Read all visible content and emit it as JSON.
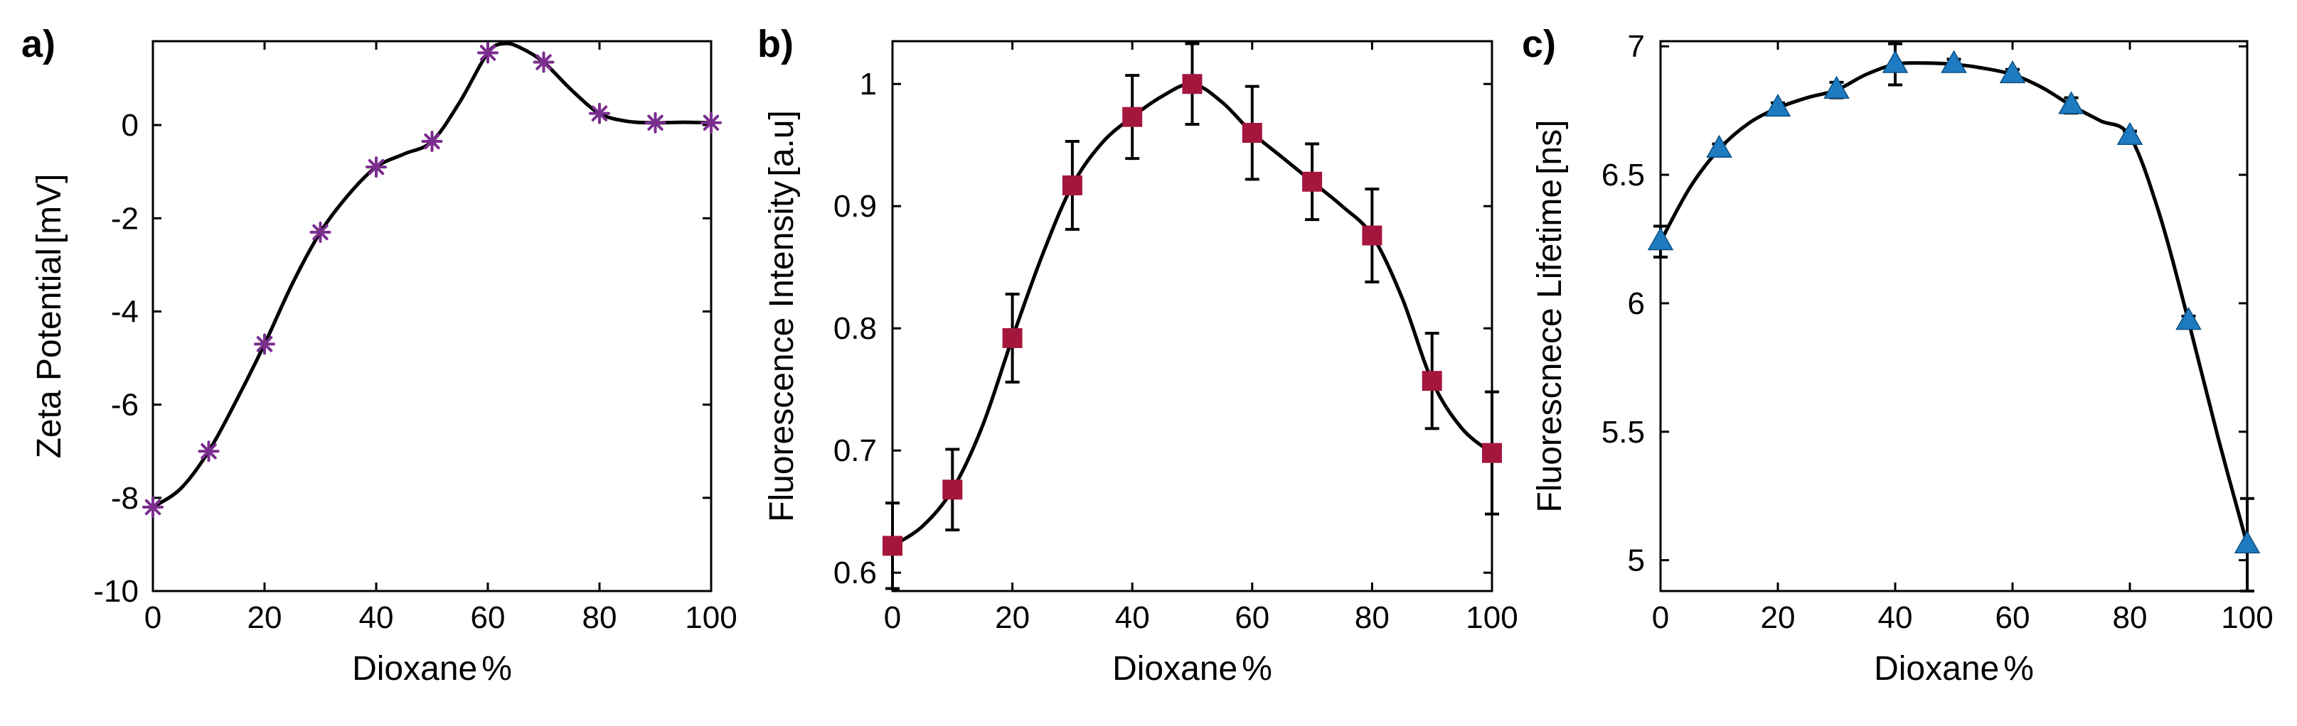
{
  "chart_data": [
    {
      "type": "scatter",
      "panel_label": "a)",
      "xlabel": "Dioxane",
      "xlabel_unit": "%",
      "ylabel": "Zeta Potential",
      "ylabel_unit": "[mV]",
      "xlim": [
        0,
        100
      ],
      "ylim": [
        -10,
        1.8
      ],
      "xticks": [
        0,
        20,
        40,
        60,
        80,
        100
      ],
      "xtick_labels": [
        "0",
        "20",
        "40",
        "60",
        "80",
        "100"
      ],
      "yticks": [
        -10,
        -8,
        -6,
        -4,
        -2,
        0
      ],
      "ytick_labels": [
        "-10",
        "-8",
        "-6",
        "-4",
        "-2",
        "0"
      ],
      "marker": "asterisk",
      "marker_color": "#7b2d8e",
      "series": [
        {
          "name": "Zeta Potential",
          "x": [
            0,
            10,
            20,
            30,
            40,
            50,
            60,
            70,
            80,
            90,
            100
          ],
          "y": [
            -8.2,
            -7.0,
            -4.7,
            -2.3,
            -0.9,
            -0.35,
            1.55,
            1.35,
            0.25,
            0.05,
            0.05
          ]
        }
      ],
      "fit_curve": {
        "x": [
          0,
          5,
          10,
          15,
          20,
          25,
          30,
          35,
          40,
          45,
          50,
          55,
          60,
          63,
          66,
          70,
          75,
          80,
          85,
          90,
          95,
          100
        ],
        "y": [
          -8.2,
          -7.8,
          -7.0,
          -5.9,
          -4.7,
          -3.4,
          -2.3,
          -1.5,
          -0.9,
          -0.62,
          -0.35,
          0.5,
          1.55,
          1.75,
          1.65,
          1.35,
          0.75,
          0.25,
          0.08,
          0.05,
          0.06,
          0.05
        ]
      }
    },
    {
      "type": "scatter",
      "panel_label": "b)",
      "xlabel": "Dioxane",
      "xlabel_unit": "%",
      "ylabel": "Fluorescence Intensity",
      "ylabel_unit": "[a.u]",
      "xlim": [
        0,
        100
      ],
      "ylim": [
        0.585,
        1.035
      ],
      "xticks": [
        0,
        20,
        40,
        60,
        80,
        100
      ],
      "xtick_labels": [
        "0",
        "20",
        "40",
        "60",
        "80",
        "100"
      ],
      "yticks": [
        0.6,
        0.7,
        0.8,
        0.9,
        1.0
      ],
      "ytick_labels": [
        "0.6",
        "0.7",
        "0.8",
        "0.9",
        "1"
      ],
      "marker": "square",
      "marker_color": "#a5163d",
      "series": [
        {
          "name": "Fluorescence Intensity",
          "x": [
            0,
            10,
            20,
            30,
            40,
            50,
            60,
            70,
            80,
            90,
            100
          ],
          "y": [
            0.622,
            0.668,
            0.792,
            0.917,
            0.973,
            1.0,
            0.96,
            0.92,
            0.876,
            0.757,
            0.698
          ],
          "err": [
            0.035,
            0.033,
            0.036,
            0.036,
            0.034,
            0.033,
            0.038,
            0.031,
            0.038,
            0.039,
            0.05
          ]
        }
      ],
      "fit_curve": {
        "x": [
          0,
          5,
          10,
          15,
          20,
          25,
          30,
          35,
          40,
          45,
          50,
          55,
          60,
          65,
          70,
          75,
          80,
          85,
          90,
          95,
          100
        ],
        "y": [
          0.622,
          0.638,
          0.668,
          0.72,
          0.792,
          0.86,
          0.917,
          0.952,
          0.973,
          0.99,
          1.0,
          0.985,
          0.96,
          0.94,
          0.92,
          0.9,
          0.876,
          0.825,
          0.757,
          0.718,
          0.698
        ]
      }
    },
    {
      "type": "scatter",
      "panel_label": "c)",
      "xlabel": "Dioxane",
      "xlabel_unit": "%",
      "ylabel": "Fluorescnece Lifetime",
      "ylabel_unit": "[ns]",
      "xlim": [
        0,
        100
      ],
      "ylim": [
        4.88,
        7.02
      ],
      "xticks": [
        0,
        20,
        40,
        60,
        80,
        100
      ],
      "xtick_labels": [
        "0",
        "20",
        "40",
        "60",
        "80",
        "100"
      ],
      "yticks": [
        5,
        5.5,
        6,
        6.5,
        7
      ],
      "ytick_labels": [
        "5",
        "5.5",
        "6",
        "6.5",
        "7"
      ],
      "marker": "triangle",
      "marker_color": "#1f7bc0",
      "series": [
        {
          "name": "Fluorescence Lifetime",
          "x": [
            0,
            10,
            20,
            30,
            40,
            50,
            60,
            70,
            80,
            90,
            100
          ],
          "y": [
            6.24,
            6.6,
            6.76,
            6.83,
            6.93,
            6.93,
            6.89,
            6.77,
            6.65,
            5.93,
            5.06
          ],
          "err": [
            0.06,
            0.02,
            0.02,
            0.03,
            0.08,
            0.02,
            0.02,
            0.03,
            0.02,
            0.02,
            0.18
          ]
        }
      ],
      "fit_curve": {
        "x": [
          0,
          5,
          10,
          15,
          20,
          25,
          30,
          35,
          40,
          45,
          50,
          55,
          60,
          65,
          70,
          75,
          80,
          85,
          90,
          95,
          100
        ],
        "y": [
          6.24,
          6.45,
          6.6,
          6.7,
          6.76,
          6.8,
          6.83,
          6.89,
          6.93,
          6.935,
          6.93,
          6.915,
          6.89,
          6.84,
          6.77,
          6.71,
          6.65,
          6.35,
          5.93,
          5.48,
          5.06
        ]
      }
    }
  ]
}
